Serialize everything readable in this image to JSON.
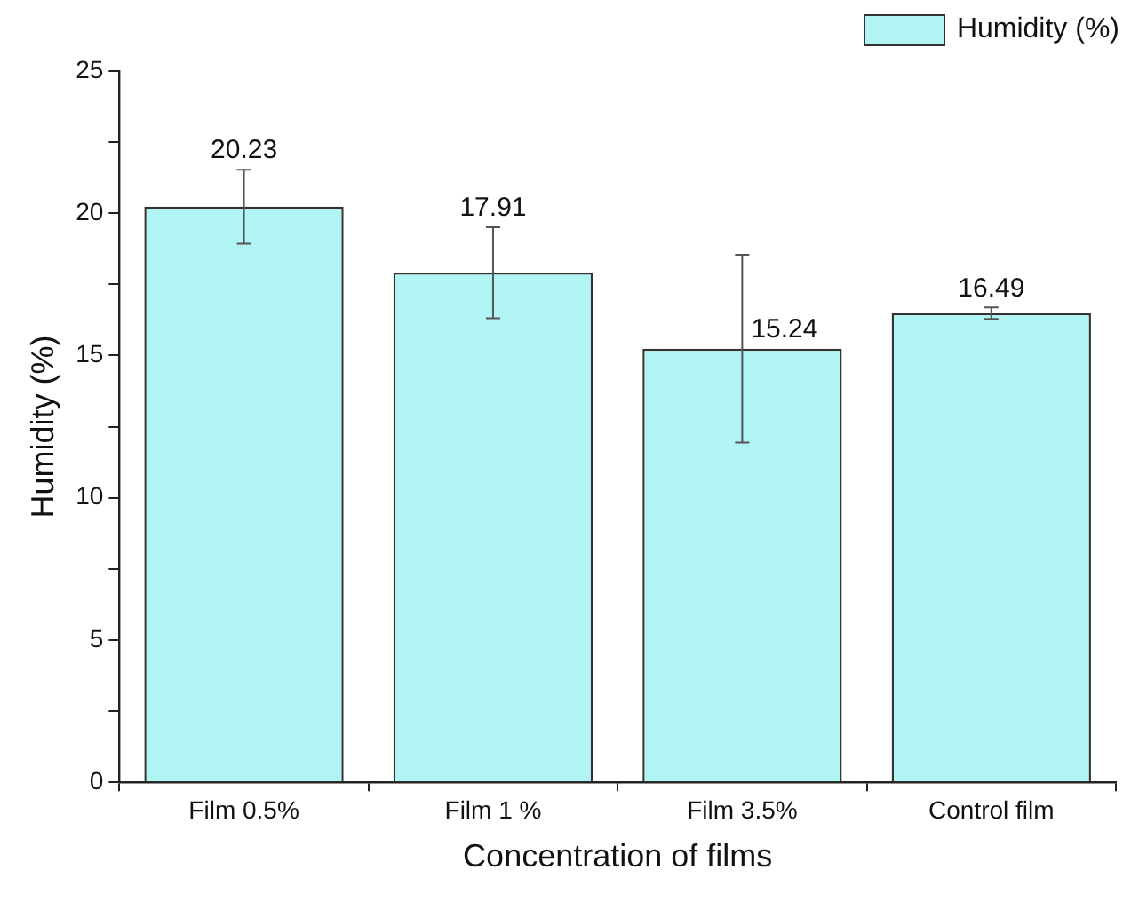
{
  "chart_data": {
    "type": "bar",
    "xlabel": "Concentration of films",
    "ylabel": "Humidity (%)",
    "categories": [
      "Film 0.5%",
      "Film 1 %",
      "Film 3.5%",
      "Control film"
    ],
    "series": [
      {
        "name": "Humidity (%)",
        "color": "#b0f4f4",
        "values": [
          20.23,
          17.91,
          15.24,
          16.49
        ],
        "errors": [
          1.3,
          1.6,
          3.3,
          0.2
        ]
      }
    ],
    "ylim": [
      0,
      25
    ],
    "yticks": [
      0,
      {
        "value": 2.5,
        "label": null
      },
      5,
      {
        "value": 7.5,
        "label": null
      },
      10,
      {
        "value": 12.5,
        "label": null
      },
      15,
      {
        "value": 17.5,
        "label": null
      },
      20,
      {
        "value": 22.5,
        "label": null
      },
      25
    ],
    "data_labels": true,
    "legend": "top right",
    "grid": false
  }
}
